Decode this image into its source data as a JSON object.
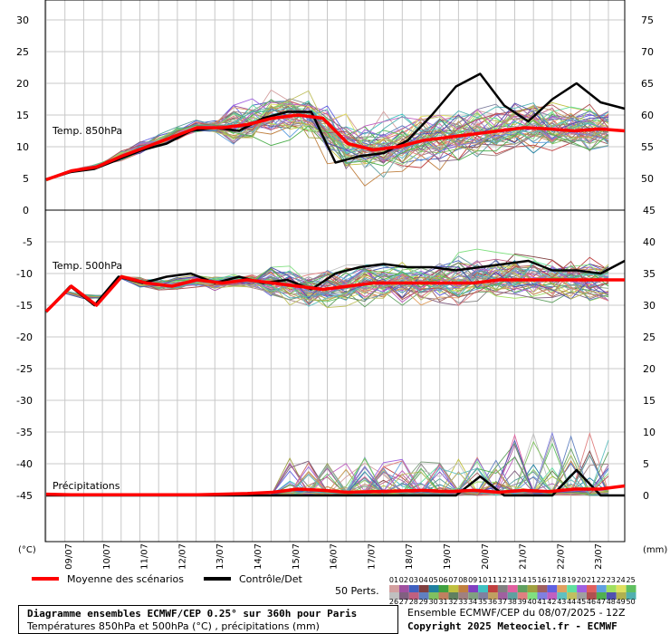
{
  "chart_data": [
    {
      "type": "line",
      "panel": "top",
      "label": "Temp. 850hPa",
      "units": "°C",
      "left_axis": {
        "ticks": [
          30,
          25,
          20,
          15,
          10,
          5,
          0
        ],
        "range": [
          0,
          33
        ]
      },
      "right_axis": {
        "ticks": [
          75,
          70,
          65,
          60,
          55,
          50
        ],
        "range": [
          45,
          78
        ]
      },
      "x_labels": [
        "09/07",
        "10/07",
        "11/07",
        "12/07",
        "13/07",
        "14/07",
        "15/07",
        "16/07",
        "17/07",
        "18/07",
        "19/07",
        "20/07",
        "21/07",
        "22/07",
        "23/07"
      ],
      "series": [
        {
          "name": "Moyenne des scénarios",
          "color": "#ff0000",
          "values": [
            4.8,
            6.2,
            6.8,
            8.5,
            10.0,
            11.5,
            13.0,
            13.0,
            13.5,
            14.5,
            15.0,
            14.5,
            10.5,
            9.5,
            10.0,
            11.0,
            11.5,
            12.0,
            12.5,
            13.0,
            12.8,
            12.5,
            12.8,
            12.5
          ]
        },
        {
          "name": "Contrôle/Det",
          "color": "#000000",
          "values": [
            4.8,
            6.0,
            6.5,
            8.0,
            9.5,
            10.5,
            12.5,
            13.0,
            12.5,
            14.5,
            15.5,
            15.5,
            7.5,
            8.5,
            9.0,
            11.0,
            15.0,
            19.5,
            21.5,
            16.5,
            14.0,
            17.5,
            20.0,
            17.0,
            16.0
          ]
        }
      ]
    },
    {
      "type": "line",
      "panel": "middle",
      "label": "Temp. 500hPa",
      "units": "°C",
      "left_axis": {
        "ticks": [
          -5,
          -10,
          -15,
          -20,
          -25,
          -30,
          -35,
          -40,
          -45
        ]
      },
      "right_axis": {
        "ticks": [
          45,
          40,
          35,
          30,
          25,
          20,
          15,
          10,
          5,
          0
        ]
      },
      "series": [
        {
          "name": "Moyenne des scénarios",
          "color": "#ff0000",
          "values": [
            -16.0,
            -12.0,
            -15.0,
            -10.5,
            -11.5,
            -12.0,
            -11.0,
            -11.5,
            -11.0,
            -11.5,
            -12.0,
            -12.5,
            -12.0,
            -11.5,
            -11.5,
            -11.5,
            -11.5,
            -11.5,
            -11.0,
            -11.0,
            -11.0,
            -11.0,
            -11.0,
            -11.0
          ]
        },
        {
          "name": "Contrôle/Det",
          "color": "#000000",
          "values": [
            -16.0,
            -12.0,
            -15.0,
            -10.5,
            -11.5,
            -10.5,
            -10.0,
            -11.5,
            -10.5,
            -11.5,
            -11.0,
            -12.5,
            -10.0,
            -9.0,
            -8.5,
            -9.0,
            -9.0,
            -9.5,
            -9.0,
            -8.5,
            -8.0,
            -9.5,
            -9.5,
            -10.0,
            -8.0
          ]
        }
      ]
    },
    {
      "type": "line",
      "panel": "bottom",
      "label": "Précipitations",
      "units": "mm",
      "right_axis": {
        "ticks": [
          10,
          5,
          0
        ]
      },
      "series": [
        {
          "name": "Moyenne des scénarios",
          "color": "#ff0000",
          "values": [
            0.2,
            0.1,
            0.1,
            0.1,
            0.1,
            0.1,
            0.1,
            0.2,
            0.3,
            0.5,
            1.0,
            0.8,
            0.5,
            0.6,
            0.7,
            0.8,
            0.6,
            0.8,
            0.5,
            0.8,
            0.6,
            1.0,
            1.0,
            1.5
          ]
        },
        {
          "name": "Contrôle/Det",
          "color": "#000000",
          "values": [
            0,
            0,
            0,
            0,
            0,
            0,
            0,
            0,
            0,
            0,
            0,
            0,
            0,
            0,
            0,
            0,
            0,
            0,
            3,
            0,
            0,
            0,
            4,
            0,
            0
          ]
        }
      ]
    }
  ],
  "axis_units": {
    "left": "(°C)",
    "right": "(mm)"
  },
  "legend": {
    "mean_label": "Moyenne des scénarios",
    "control_label": "Contrôle/Det",
    "perts_label": "50 Perts.",
    "perts_top": [
      "01",
      "02",
      "03",
      "04",
      "05",
      "06",
      "07",
      "08",
      "09",
      "10",
      "11",
      "12",
      "13",
      "14",
      "15",
      "16",
      "17",
      "18",
      "19",
      "20",
      "21",
      "22",
      "23",
      "24",
      "25"
    ],
    "perts_bottom": [
      "26",
      "27",
      "28",
      "29",
      "30",
      "31",
      "32",
      "33",
      "34",
      "35",
      "36",
      "37",
      "38",
      "39",
      "40",
      "41",
      "42",
      "43",
      "44",
      "45",
      "46",
      "47",
      "48",
      "49",
      "50"
    ],
    "colors": [
      "#d4a0a0",
      "#a050a0",
      "#4060c0",
      "#804040",
      "#2080a0",
      "#40a040",
      "#c0c040",
      "#c08040",
      "#8040c0",
      "#40c0c0",
      "#c04040",
      "#808080",
      "#e060a0",
      "#60a060",
      "#a0a040",
      "#a06060",
      "#6060e0",
      "#e0a060",
      "#60e0a0",
      "#a060e0",
      "#e06060",
      "#60a0e0",
      "#a0e060",
      "#e0e060",
      "#60c060",
      "#c0c0c0",
      "#806080",
      "#c06080",
      "#6080c0",
      "#80c060",
      "#c08060",
      "#608060",
      "#a08080",
      "#80a080",
      "#8080a0",
      "#c0a060",
      "#a060a0",
      "#60a0a0",
      "#e08080",
      "#80e080",
      "#8080e0",
      "#c060c0",
      "#60c0c0",
      "#c0c060",
      "#a0a0a0",
      "#b05050",
      "#50b050",
      "#5050b0",
      "#b0b050",
      "#50b0b0"
    ]
  },
  "title_box": {
    "line1": "Diagramme ensembles ECMWF/CEP 0.25° sur 360h pour Paris",
    "line2": "Températures 850hPa et 500hPa (°C) , précipitations (mm)"
  },
  "run_info": "Ensemble ECMWF/CEP du 08/07/2025 - 12Z",
  "copyright": "Copyright 2025 Meteociel.fr - ECMWF"
}
